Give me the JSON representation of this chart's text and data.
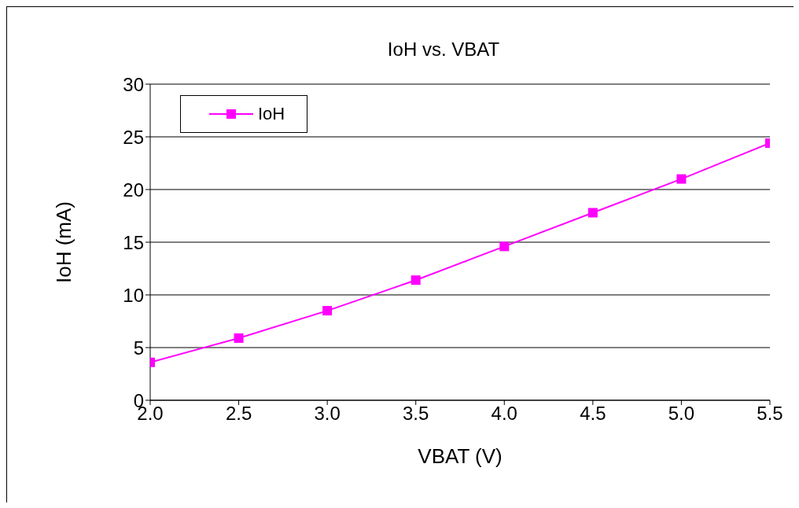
{
  "chart_data": {
    "type": "line",
    "title": "IoH vs. VBAT",
    "xlabel": "VBAT (V)",
    "ylabel": "IoH (mA)",
    "x": [
      2.0,
      2.5,
      3.0,
      3.5,
      4.0,
      4.5,
      5.0,
      5.5
    ],
    "series": [
      {
        "name": "IoH",
        "color": "#ff00ff",
        "values": [
          3.6,
          5.9,
          8.5,
          11.4,
          14.6,
          17.8,
          21.0,
          24.4
        ]
      }
    ],
    "xlim": [
      2.0,
      5.5
    ],
    "xticks": [
      {
        "value": 2,
        "label": "2.0"
      },
      {
        "value": 2.5,
        "label": "2.5"
      },
      {
        "value": 3,
        "label": "3.0"
      },
      {
        "value": 3.5,
        "label": "3.5"
      },
      {
        "value": 4,
        "label": "4.0"
      },
      {
        "value": 4.5,
        "label": "4.5"
      },
      {
        "value": 5,
        "label": "5.0"
      },
      {
        "value": 5.5,
        "label": "5.5"
      }
    ],
    "ylim": [
      0,
      30
    ],
    "yticks": [
      0,
      5,
      10,
      15,
      20,
      25,
      30
    ],
    "grid": "y",
    "legend": "top left",
    "marker": "square",
    "line_style": "solid"
  }
}
